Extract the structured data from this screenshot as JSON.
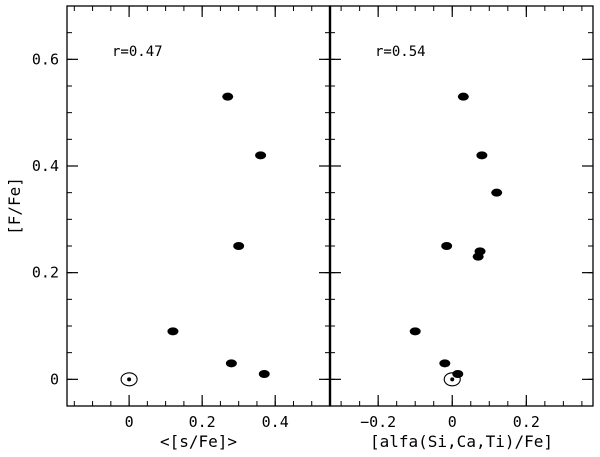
{
  "chart_data": [
    {
      "type": "scatter",
      "title": "",
      "annotation": "r=0.47",
      "xlabel": "<[s/Fe]>",
      "ylabel": "[F/Fe]",
      "xlim": [
        -0.17,
        0.55
      ],
      "ylim": [
        -0.05,
        0.7
      ],
      "xticks": [
        0,
        0.2,
        0.4
      ],
      "xtick_labels": [
        "0",
        "0.2",
        "0.4"
      ],
      "yticks": [
        0,
        0.2,
        0.4,
        0.6
      ],
      "ytick_labels": [
        "0",
        "0.2",
        "0.4",
        "0.6"
      ],
      "points": [
        {
          "x": 0.27,
          "y": 0.53
        },
        {
          "x": 0.36,
          "y": 0.42
        },
        {
          "x": 0.3,
          "y": 0.25
        },
        {
          "x": 0.12,
          "y": 0.09
        },
        {
          "x": 0.28,
          "y": 0.03
        },
        {
          "x": 0.37,
          "y": 0.01
        }
      ],
      "solar_reference": {
        "x": 0,
        "y": 0
      },
      "grid": false
    },
    {
      "type": "scatter",
      "title": "",
      "annotation": "r=0.54",
      "xlabel": "[alfa(Si,Ca,Ti)/Fe]",
      "ylabel": "",
      "xlim": [
        -0.33,
        0.38
      ],
      "ylim": [
        -0.05,
        0.7
      ],
      "xticks": [
        -0.2,
        0,
        0.2
      ],
      "xtick_labels": [
        "−0.2",
        "0",
        "0.2"
      ],
      "yticks": [
        0,
        0.2,
        0.4,
        0.6
      ],
      "points": [
        {
          "x": 0.03,
          "y": 0.53
        },
        {
          "x": 0.08,
          "y": 0.42
        },
        {
          "x": 0.12,
          "y": 0.35
        },
        {
          "x": -0.015,
          "y": 0.25
        },
        {
          "x": 0.075,
          "y": 0.24
        },
        {
          "x": 0.07,
          "y": 0.23
        },
        {
          "x": -0.1,
          "y": 0.09
        },
        {
          "x": -0.02,
          "y": 0.03
        },
        {
          "x": 0.015,
          "y": 0.01
        }
      ],
      "solar_reference": {
        "x": 0,
        "y": 0
      },
      "grid": false
    }
  ]
}
